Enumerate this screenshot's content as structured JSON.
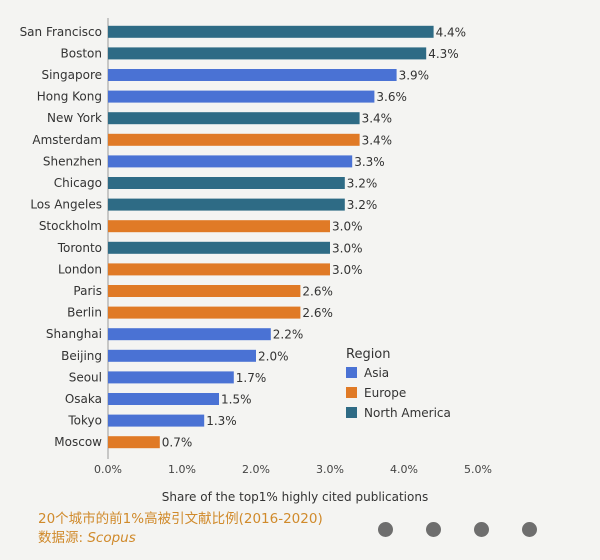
{
  "chart_data": {
    "type": "bar",
    "orientation": "horizontal",
    "categories": [
      "San Francisco",
      "Boston",
      "Singapore",
      "Hong Kong",
      "New York",
      "Amsterdam",
      "Shenzhen",
      "Chicago",
      "Los Angeles",
      "Stockholm",
      "Toronto",
      "London",
      "Paris",
      "Berlin",
      "Shanghai",
      "Beijing",
      "Seoul",
      "Osaka",
      "Tokyo",
      "Moscow"
    ],
    "values": [
      4.4,
      4.3,
      3.9,
      3.6,
      3.4,
      3.4,
      3.3,
      3.2,
      3.2,
      3.0,
      3.0,
      3.0,
      2.6,
      2.6,
      2.2,
      2.0,
      1.7,
      1.5,
      1.3,
      0.7
    ],
    "value_labels": [
      "4.4%",
      "4.3%",
      "3.9%",
      "3.6%",
      "3.4%",
      "3.4%",
      "3.3%",
      "3.2%",
      "3.2%",
      "3.0%",
      "3.0%",
      "3.0%",
      "2.6%",
      "2.6%",
      "2.2%",
      "2.0%",
      "1.7%",
      "1.5%",
      "1.3%",
      "0.7%"
    ],
    "regions": [
      "North America",
      "North America",
      "Asia",
      "Asia",
      "North America",
      "Europe",
      "Asia",
      "North America",
      "North America",
      "Europe",
      "North America",
      "Europe",
      "Europe",
      "Europe",
      "Asia",
      "Asia",
      "Asia",
      "Asia",
      "Asia",
      "Europe"
    ],
    "xlim": [
      0,
      5
    ],
    "xticks": [
      "0.0%",
      "1.0%",
      "2.0%",
      "3.0%",
      "4.0%",
      "5.0%"
    ],
    "xlabel": "Share of the top1% highly cited publications",
    "legend": {
      "title": "Region",
      "placement": "lower-right",
      "items": [
        {
          "name": "Asia",
          "color": "#4a72d4"
        },
        {
          "name": "Europe",
          "color": "#e07a26"
        },
        {
          "name": "North America",
          "color": "#2e6b85"
        }
      ]
    },
    "grid": false
  },
  "caption": {
    "title": "20个城市的前1%高被引文献比例(2016-2020)",
    "source_label": "数据源: ",
    "source": "Scopus"
  },
  "pager": {
    "dot_count": 4,
    "color": "#6e6e6e"
  }
}
